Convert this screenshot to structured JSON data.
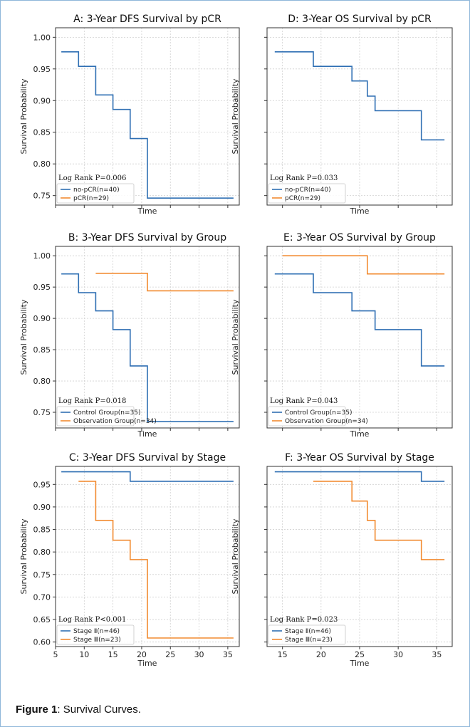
{
  "caption": {
    "label": "Figure 1",
    "text": ": Survival Curves."
  },
  "colors": {
    "series1": "#2f6fb3",
    "series2": "#f28b30",
    "grid": "#d0d0d0",
    "frame": "#8fb6d9"
  },
  "chart_data": [
    {
      "id": "A",
      "type": "line",
      "step": true,
      "title": "A: 3-Year DFS Survival by pCR",
      "xlabel": "Time",
      "ylabel": "Survival Probability",
      "xlim": [
        5,
        37
      ],
      "ylim": [
        0.735,
        1.015
      ],
      "yticks": [
        "0.75",
        "0.80",
        "0.85",
        "0.90",
        "0.95",
        "1.00"
      ],
      "xticks": [],
      "annotation": "Log Rank P=0.006",
      "series": [
        {
          "name": "no-pCR(n=40)",
          "x": [
            6,
            9,
            9,
            12,
            12,
            15,
            15,
            18,
            18,
            21,
            21,
            36
          ],
          "y": [
            0.977,
            0.977,
            0.954,
            0.954,
            0.909,
            0.909,
            0.886,
            0.886,
            0.84,
            0.84,
            0.746,
            0.746
          ]
        },
        {
          "name": "pCR(n=29)",
          "x": [],
          "y": []
        }
      ]
    },
    {
      "id": "D",
      "type": "line",
      "step": true,
      "title": "D: 3-Year OS Survival by pCR",
      "xlabel": "Time",
      "ylabel": "Survival Probability",
      "xlim": [
        13,
        37
      ],
      "ylim": [
        0.735,
        1.015
      ],
      "yticks": [],
      "xticks": [],
      "annotation": "Log Rank P=0.033",
      "series": [
        {
          "name": "no-pCR(n=40)",
          "x": [
            14,
            19,
            19,
            24,
            24,
            26,
            26,
            27,
            27,
            33,
            33,
            36
          ],
          "y": [
            0.977,
            0.977,
            0.954,
            0.954,
            0.931,
            0.931,
            0.907,
            0.907,
            0.884,
            0.884,
            0.838,
            0.838
          ]
        },
        {
          "name": "pCR(n=29)",
          "x": [],
          "y": []
        }
      ]
    },
    {
      "id": "B",
      "type": "line",
      "step": true,
      "title": "B: 3-Year DFS Survival by Group",
      "xlabel": "Time",
      "ylabel": "Survival Probability",
      "xlim": [
        5,
        37
      ],
      "ylim": [
        0.725,
        1.015
      ],
      "yticks": [
        "0.75",
        "0.80",
        "0.85",
        "0.90",
        "0.95",
        "1.00"
      ],
      "xticks": [],
      "annotation": "Log Rank P=0.018",
      "series": [
        {
          "name": "Control Group(n=35)",
          "x": [
            6,
            9,
            9,
            12,
            12,
            15,
            15,
            18,
            18,
            21,
            21,
            36
          ],
          "y": [
            0.971,
            0.971,
            0.941,
            0.941,
            0.912,
            0.912,
            0.882,
            0.882,
            0.824,
            0.824,
            0.735,
            0.735
          ]
        },
        {
          "name": "Observation Group(n=34)",
          "x": [
            12,
            21,
            21,
            36
          ],
          "y": [
            0.972,
            0.972,
            0.944,
            0.944
          ]
        }
      ]
    },
    {
      "id": "E",
      "type": "line",
      "step": true,
      "title": "E: 3-Year OS Survival by Group",
      "xlabel": "Time",
      "ylabel": "Survival Probability",
      "xlim": [
        13,
        37
      ],
      "ylim": [
        0.725,
        1.015
      ],
      "yticks": [],
      "xticks": [],
      "annotation": "Log Rank P=0.043",
      "series": [
        {
          "name": "Control Group(n=35)",
          "x": [
            14,
            19,
            19,
            24,
            24,
            27,
            27,
            33,
            33,
            36
          ],
          "y": [
            0.971,
            0.971,
            0.941,
            0.941,
            0.912,
            0.912,
            0.882,
            0.882,
            0.824,
            0.824
          ]
        },
        {
          "name": "Observation Group(n=34)",
          "x": [
            15,
            26,
            26,
            36
          ],
          "y": [
            1.0,
            1.0,
            0.971,
            0.971
          ]
        }
      ]
    },
    {
      "id": "C",
      "type": "line",
      "step": true,
      "title": "C: 3-Year DFS Survival by Stage",
      "xlabel": "Time",
      "ylabel": "Survival Probability",
      "xlim": [
        5,
        37
      ],
      "ylim": [
        0.59,
        0.99
      ],
      "yticks": [
        "0.60",
        "0.65",
        "0.70",
        "0.75",
        "0.80",
        "0.85",
        "0.90",
        "0.95"
      ],
      "xticks": [
        "5",
        "10",
        "15",
        "20",
        "25",
        "30",
        "35"
      ],
      "annotation": "Log Rank P<0.001",
      "series": [
        {
          "name": "Stage Ⅱ(n=46)",
          "x": [
            6,
            18,
            18,
            36
          ],
          "y": [
            0.978,
            0.978,
            0.957,
            0.957
          ]
        },
        {
          "name": "Stage Ⅲ(n=23)",
          "x": [
            9,
            12,
            12,
            15,
            15,
            18,
            18,
            21,
            21,
            36
          ],
          "y": [
            0.957,
            0.957,
            0.87,
            0.87,
            0.826,
            0.826,
            0.783,
            0.783,
            0.609,
            0.609
          ]
        }
      ]
    },
    {
      "id": "F",
      "type": "line",
      "step": true,
      "title": "F: 3-Year OS Survival by Stage",
      "xlabel": "Time",
      "ylabel": "Survival Probability",
      "xlim": [
        13,
        37
      ],
      "ylim": [
        0.59,
        0.99
      ],
      "yticks": [],
      "xticks": [
        "15",
        "20",
        "25",
        "30",
        "35"
      ],
      "annotation": "Log Rank P=0.023",
      "series": [
        {
          "name": "Stage Ⅱ(n=46)",
          "x": [
            14,
            33,
            33,
            36
          ],
          "y": [
            0.978,
            0.978,
            0.957,
            0.957
          ]
        },
        {
          "name": "Stage Ⅲ(n=23)",
          "x": [
            19,
            24,
            24,
            26,
            26,
            27,
            27,
            33,
            33,
            36
          ],
          "y": [
            0.957,
            0.957,
            0.913,
            0.913,
            0.87,
            0.87,
            0.826,
            0.826,
            0.783,
            0.783
          ]
        }
      ]
    }
  ]
}
